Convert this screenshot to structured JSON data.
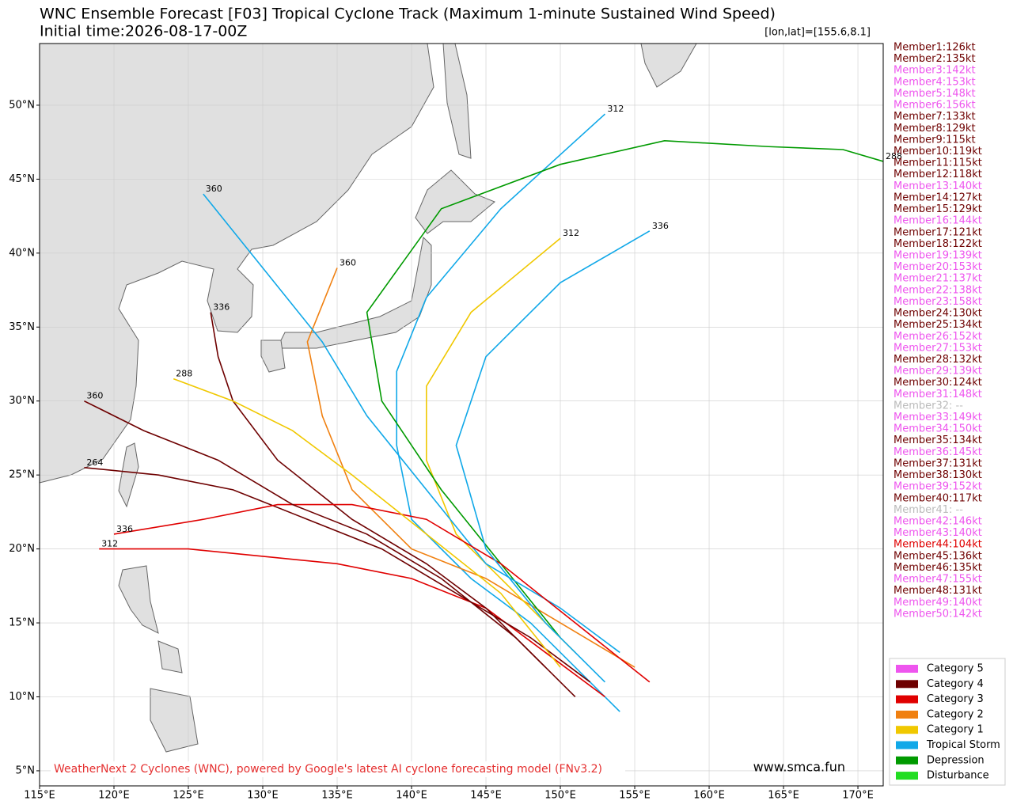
{
  "chart_data": {
    "type": "track-map",
    "title": "WNC Ensemble Forecast [F03] Tropical Cyclone Track (Maximum 1-minute Sustained Wind Speed)",
    "subtitle": "Initial time:2026-08-17-00Z",
    "position_note": "[lon,lat]=[155.6,8.1]",
    "xlim": [
      115,
      171.7
    ],
    "ylim": [
      3.98,
      54.17
    ],
    "xticks": [
      {
        "value": 115,
        "label": "115°E"
      },
      {
        "value": 120,
        "label": "120°E"
      },
      {
        "value": 125,
        "label": "125°E"
      },
      {
        "value": 130,
        "label": "130°E"
      },
      {
        "value": 135,
        "label": "135°E"
      },
      {
        "value": 140,
        "label": "140°E"
      },
      {
        "value": 145,
        "label": "145°E"
      },
      {
        "value": 150,
        "label": "150°E"
      },
      {
        "value": 155,
        "label": "155°E"
      },
      {
        "value": 160,
        "label": "160°E"
      },
      {
        "value": 165,
        "label": "165°E"
      },
      {
        "value": 170,
        "label": "170°E"
      }
    ],
    "yticks": [
      {
        "value": 5,
        "label": "5°N"
      },
      {
        "value": 10,
        "label": "10°N"
      },
      {
        "value": 15,
        "label": "15°N"
      },
      {
        "value": 20,
        "label": "20°N"
      },
      {
        "value": 25,
        "label": "25°N"
      },
      {
        "value": 30,
        "label": "30°N"
      },
      {
        "value": 35,
        "label": "35°N"
      },
      {
        "value": 40,
        "label": "40°N"
      },
      {
        "value": 45,
        "label": "45°N"
      },
      {
        "value": 50,
        "label": "50°N"
      }
    ],
    "grid": true,
    "tracks": [
      {
        "color": "#10a8e8",
        "lon": [
          154,
          151,
          148,
          144,
          140,
          139,
          139,
          141,
          146,
          153
        ],
        "lat": [
          9,
          12,
          15,
          18,
          22,
          27,
          32,
          37,
          43,
          49.4
        ],
        "end_label": 312
      },
      {
        "color": "#e00000",
        "lon": [
          153,
          149,
          145,
          140,
          135,
          130,
          125,
          119
        ],
        "lat": [
          10,
          13,
          16,
          18,
          19,
          19.5,
          20,
          20
        ],
        "end_label": 312
      },
      {
        "color": "#6e0000",
        "lon": [
          152,
          148,
          143,
          138,
          133,
          128,
          123,
          118
        ],
        "lat": [
          11,
          14,
          17,
          20,
          22,
          24,
          25,
          25.5
        ],
        "end_label": 264
      },
      {
        "color": "#f08010",
        "lon": [
          155,
          150,
          145,
          140,
          136,
          134,
          133,
          135
        ],
        "lat": [
          12,
          15,
          18,
          20,
          24,
          29,
          34,
          39
        ],
        "end_label": 360
      },
      {
        "color": "#f0c800",
        "lon": [
          151,
          147,
          143,
          141,
          141,
          144,
          150
        ],
        "lat": [
          13,
          17,
          21,
          26,
          31,
          36,
          41
        ],
        "end_label": 312
      },
      {
        "color": "#009a00",
        "lon": [
          150,
          146,
          142,
          138,
          137,
          142,
          150,
          157,
          164,
          169,
          171.7
        ],
        "lat": [
          14,
          19,
          24,
          30,
          36,
          43,
          46,
          47.6,
          47.2,
          47,
          46.2
        ],
        "end_label": 288
      },
      {
        "color": "#10a8e8",
        "lon": [
          154,
          150,
          145,
          141,
          137,
          134,
          130,
          126
        ],
        "lat": [
          13,
          16,
          19,
          24,
          29,
          34,
          39,
          44
        ],
        "end_label": 360
      },
      {
        "color": "#6e0000",
        "lon": [
          149,
          145,
          141,
          136,
          131,
          128,
          127,
          126.5
        ],
        "lat": [
          12,
          16,
          19,
          22,
          26,
          30,
          33,
          36
        ],
        "end_label": 336
      },
      {
        "color": "#e00000",
        "lon": [
          156,
          151,
          146,
          141,
          136,
          131,
          126,
          120
        ],
        "lat": [
          11,
          15,
          19,
          22,
          23,
          23,
          22,
          21
        ],
        "end_label": 336
      },
      {
        "color": "#10a8e8",
        "lon": [
          153,
          149,
          145,
          143,
          145,
          150,
          156
        ],
        "lat": [
          11,
          15,
          20,
          27,
          33,
          38,
          41.5
        ],
        "end_label": 336
      },
      {
        "color": "#f0c800",
        "lon": [
          150,
          146,
          141,
          136,
          132,
          128,
          124
        ],
        "lat": [
          12,
          17,
          21,
          25,
          28,
          30,
          31.5
        ],
        "end_label": 288
      },
      {
        "color": "#6e0000",
        "lon": [
          151,
          147,
          142,
          137,
          132,
          127,
          122,
          118
        ],
        "lat": [
          10,
          14,
          18,
          21,
          23,
          26,
          28,
          30
        ],
        "end_label": 360
      }
    ],
    "members": [
      {
        "label": "Member1:126kt",
        "color": "#6e0000"
      },
      {
        "label": "Member2:135kt",
        "color": "#6e0000"
      },
      {
        "label": "Member3:142kt",
        "color": "#ee55ee"
      },
      {
        "label": "Member4:153kt",
        "color": "#ee55ee"
      },
      {
        "label": "Member5:148kt",
        "color": "#ee55ee"
      },
      {
        "label": "Member6:156kt",
        "color": "#ee55ee"
      },
      {
        "label": "Member7:133kt",
        "color": "#6e0000"
      },
      {
        "label": "Member8:129kt",
        "color": "#6e0000"
      },
      {
        "label": "Member9:115kt",
        "color": "#6e0000"
      },
      {
        "label": "Member10:119kt",
        "color": "#6e0000"
      },
      {
        "label": "Member11:115kt",
        "color": "#6e0000"
      },
      {
        "label": "Member12:118kt",
        "color": "#6e0000"
      },
      {
        "label": "Member13:140kt",
        "color": "#ee55ee"
      },
      {
        "label": "Member14:127kt",
        "color": "#6e0000"
      },
      {
        "label": "Member15:129kt",
        "color": "#6e0000"
      },
      {
        "label": "Member16:144kt",
        "color": "#ee55ee"
      },
      {
        "label": "Member17:121kt",
        "color": "#6e0000"
      },
      {
        "label": "Member18:122kt",
        "color": "#6e0000"
      },
      {
        "label": "Member19:139kt",
        "color": "#ee55ee"
      },
      {
        "label": "Member20:153kt",
        "color": "#ee55ee"
      },
      {
        "label": "Member21:137kt",
        "color": "#ee55ee"
      },
      {
        "label": "Member22:138kt",
        "color": "#ee55ee"
      },
      {
        "label": "Member23:158kt",
        "color": "#ee55ee"
      },
      {
        "label": "Member24:130kt",
        "color": "#6e0000"
      },
      {
        "label": "Member25:134kt",
        "color": "#6e0000"
      },
      {
        "label": "Member26:152kt",
        "color": "#ee55ee"
      },
      {
        "label": "Member27:153kt",
        "color": "#ee55ee"
      },
      {
        "label": "Member28:132kt",
        "color": "#6e0000"
      },
      {
        "label": "Member29:139kt",
        "color": "#ee55ee"
      },
      {
        "label": "Member30:124kt",
        "color": "#6e0000"
      },
      {
        "label": "Member31:148kt",
        "color": "#ee55ee"
      },
      {
        "label": "Member32: --",
        "color": "#bbbbbb"
      },
      {
        "label": "Member33:149kt",
        "color": "#ee55ee"
      },
      {
        "label": "Member34:150kt",
        "color": "#ee55ee"
      },
      {
        "label": "Member35:134kt",
        "color": "#6e0000"
      },
      {
        "label": "Member36:145kt",
        "color": "#ee55ee"
      },
      {
        "label": "Member37:131kt",
        "color": "#6e0000"
      },
      {
        "label": "Member38:130kt",
        "color": "#6e0000"
      },
      {
        "label": "Member39:152kt",
        "color": "#ee55ee"
      },
      {
        "label": "Member40:117kt",
        "color": "#6e0000"
      },
      {
        "label": "Member41: --",
        "color": "#bbbbbb"
      },
      {
        "label": "Member42:146kt",
        "color": "#ee55ee"
      },
      {
        "label": "Member43:140kt",
        "color": "#ee55ee"
      },
      {
        "label": "Member44:104kt",
        "color": "#e00000"
      },
      {
        "label": "Member45:136kt",
        "color": "#6e0000"
      },
      {
        "label": "Member46:135kt",
        "color": "#6e0000"
      },
      {
        "label": "Member47:155kt",
        "color": "#ee55ee"
      },
      {
        "label": "Member48:131kt",
        "color": "#6e0000"
      },
      {
        "label": "Member49:140kt",
        "color": "#ee55ee"
      },
      {
        "label": "Member50:142kt",
        "color": "#ee55ee"
      }
    ],
    "legend": [
      {
        "name": "Category 5",
        "color": "#ee55ee"
      },
      {
        "name": "Category 4",
        "color": "#6e0000"
      },
      {
        "name": "Category 3",
        "color": "#e00000"
      },
      {
        "name": "Category 2",
        "color": "#f08010"
      },
      {
        "name": "Category 1",
        "color": "#f0c800"
      },
      {
        "name": "Tropical Storm",
        "color": "#10a8e8"
      },
      {
        "name": "Depression",
        "color": "#009a00"
      },
      {
        "name": "Disturbance",
        "color": "#22dd22"
      }
    ],
    "credit": "WeatherNext 2 Cyclones (WNC), powered by Google's latest AI cyclone forecasting model (FNv3.2)",
    "website": "www.smca.fun"
  }
}
